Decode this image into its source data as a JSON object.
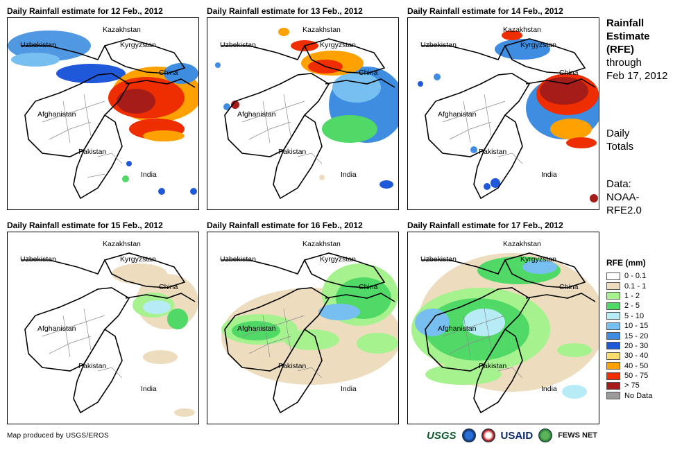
{
  "panels": [
    {
      "title": "Daily Rainfall estimate for 12 Feb., 2012"
    },
    {
      "title": "Daily Rainfall estimate for 13 Feb., 2012"
    },
    {
      "title": "Daily Rainfall estimate for 14 Feb., 2012"
    },
    {
      "title": "Daily Rainfall estimate for 15 Feb., 2012"
    },
    {
      "title": "Daily Rainfall estimate for 16 Feb., 2012"
    },
    {
      "title": "Daily Rainfall estimate for 17 Feb., 2012"
    }
  ],
  "map_labels": {
    "kazakhstan": "Kazakhstan",
    "uzbekistan": "Uzbekistan",
    "kyrgyzstan": "Kyrgyzstan",
    "china": "China",
    "afghanistan": "Afghanistan",
    "pakistan": "Pakistan",
    "india": "India"
  },
  "side": {
    "title_line1": "Rainfall",
    "title_line2": "Estimate",
    "title_line3": "(RFE)",
    "title_line4": "through",
    "title_line5": "Feb 17, 2012",
    "daily_line1": "Daily",
    "daily_line2": "Totals",
    "data_line1": "Data:",
    "data_line2": "NOAA-",
    "data_line3": "RFE2.0"
  },
  "legend": {
    "title": "RFE (mm)",
    "items": [
      {
        "label": "0 - 0.1",
        "color": "#ffffff"
      },
      {
        "label": "0.1 - 1",
        "color": "#eddcbe"
      },
      {
        "label": "1 - 2",
        "color": "#a6f28f"
      },
      {
        "label": "2 - 5",
        "color": "#50d966"
      },
      {
        "label": "5 - 10",
        "color": "#b7ecf7"
      },
      {
        "label": "10 - 15",
        "color": "#76bff0"
      },
      {
        "label": "15 - 20",
        "color": "#3e8de0"
      },
      {
        "label": "20 - 30",
        "color": "#1f58d8"
      },
      {
        "label": "30 - 40",
        "color": "#fcdc6a"
      },
      {
        "label": "40 - 50",
        "color": "#ffa100"
      },
      {
        "label": "50 - 75",
        "color": "#ee2e00"
      },
      {
        "label": "> 75",
        "color": "#a51c18"
      },
      {
        "label": "No Data",
        "color": "#9a9a9a"
      }
    ]
  },
  "footer": {
    "credit": "Map produced by USGS/EROS",
    "logo_usgs": "USGS",
    "logo_usaid": "USAID",
    "logo_fews": "FEWS NET"
  },
  "colors": {
    "boundary": "#000000",
    "province": "#8a8a8a"
  }
}
